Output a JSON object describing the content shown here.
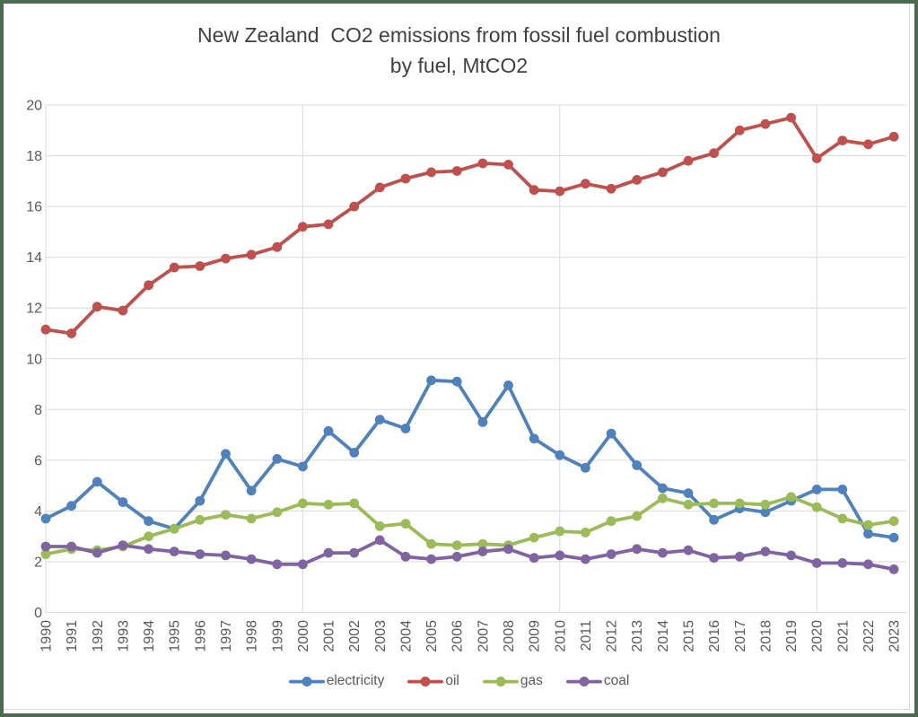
{
  "title": {
    "line1": "New Zealand  CO2 emissions from fossil fuel combustion",
    "line2": "by fuel, MtCO2"
  },
  "style": {
    "outer_border_color": "#4a6d50",
    "chart_border_color": "#d9d9d9",
    "gridline_color": "#d9d9d9",
    "axis_text_color": "#595959",
    "title_color": "#404040",
    "background_color": "#ffffff"
  },
  "chart_data": {
    "type": "line",
    "title": "New Zealand CO2 emissions from fossil fuel combustion by fuel, MtCO2",
    "xlabel": "",
    "ylabel": "",
    "ylim": [
      0,
      20
    ],
    "ytick_step": 2,
    "yticks": [
      0,
      2,
      4,
      6,
      8,
      10,
      12,
      14,
      16,
      18,
      20
    ],
    "grid": true,
    "x_gridline_years": [
      1990,
      2000,
      2010,
      2020
    ],
    "legend_position": "bottom",
    "marker": "circle",
    "x": [
      1990,
      1991,
      1992,
      1993,
      1994,
      1995,
      1996,
      1997,
      1998,
      1999,
      2000,
      2001,
      2002,
      2003,
      2004,
      2005,
      2006,
      2007,
      2008,
      2009,
      2010,
      2011,
      2012,
      2013,
      2014,
      2015,
      2016,
      2017,
      2018,
      2019,
      2020,
      2021,
      2022,
      2023
    ],
    "series": [
      {
        "name": "electricity",
        "color": "#4F81BD",
        "values": [
          3.7,
          4.2,
          5.15,
          4.35,
          3.6,
          3.3,
          4.4,
          6.25,
          4.8,
          6.05,
          5.75,
          7.15,
          6.3,
          7.6,
          7.25,
          9.15,
          9.1,
          7.5,
          8.95,
          6.85,
          6.2,
          5.7,
          7.05,
          5.8,
          4.9,
          4.7,
          3.65,
          4.1,
          3.95,
          4.4,
          4.85,
          4.85,
          3.1,
          2.95
        ]
      },
      {
        "name": "oil",
        "color": "#C0504D",
        "values": [
          11.15,
          11.0,
          12.05,
          11.9,
          12.9,
          13.6,
          13.65,
          13.95,
          14.1,
          14.4,
          15.2,
          15.3,
          16.0,
          16.75,
          17.1,
          17.35,
          17.4,
          17.7,
          17.65,
          16.65,
          16.6,
          16.9,
          16.7,
          17.05,
          17.35,
          17.8,
          18.1,
          19.0,
          19.25,
          19.5,
          17.9,
          18.6,
          18.45,
          18.75
        ]
      },
      {
        "name": "gas",
        "color": "#9BBB59",
        "values": [
          2.3,
          2.5,
          2.45,
          2.6,
          3.0,
          3.3,
          3.65,
          3.85,
          3.7,
          3.95,
          4.3,
          4.25,
          4.3,
          3.4,
          3.5,
          2.7,
          2.65,
          2.7,
          2.65,
          2.95,
          3.2,
          3.15,
          3.6,
          3.8,
          4.5,
          4.25,
          4.3,
          4.3,
          4.25,
          4.55,
          4.15,
          3.7,
          3.45,
          3.6
        ]
      },
      {
        "name": "coal",
        "color": "#8064A2",
        "values": [
          2.6,
          2.6,
          2.35,
          2.65,
          2.5,
          2.4,
          2.3,
          2.25,
          2.1,
          1.9,
          1.9,
          2.35,
          2.35,
          2.85,
          2.2,
          2.1,
          2.2,
          2.4,
          2.5,
          2.15,
          2.25,
          2.1,
          2.3,
          2.5,
          2.35,
          2.45,
          2.15,
          2.2,
          2.4,
          2.25,
          1.95,
          1.95,
          1.9,
          1.7
        ]
      }
    ]
  }
}
